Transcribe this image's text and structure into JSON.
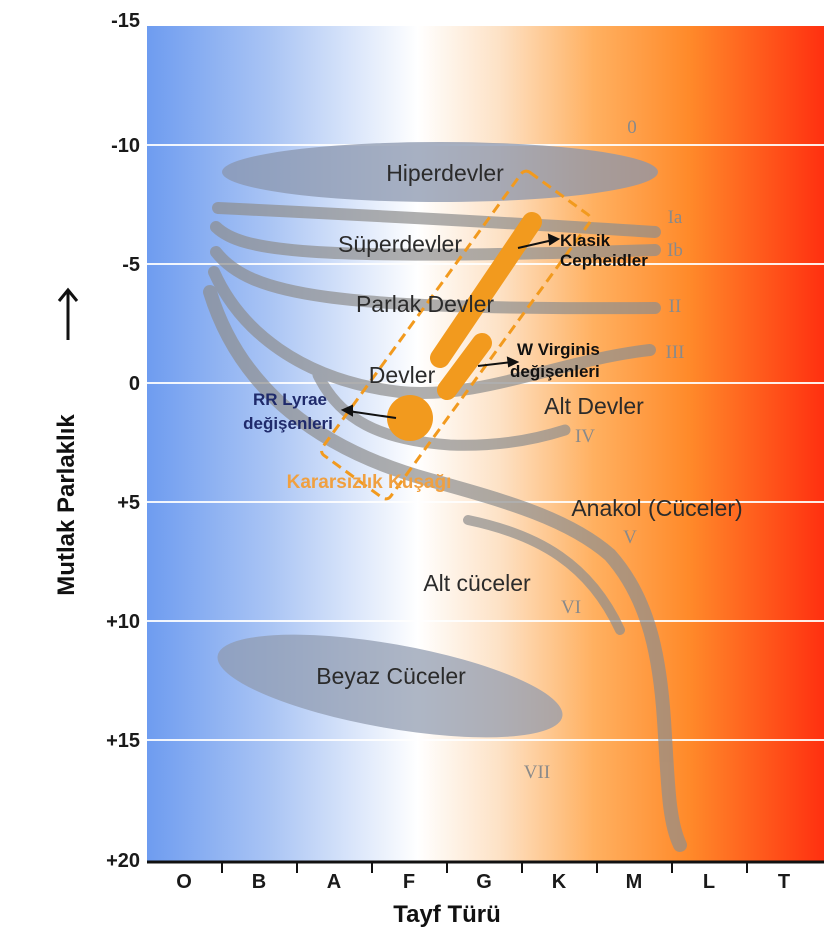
{
  "diagram": {
    "y_axis_title": "Mutlak Parlaklık",
    "x_axis_title": "Tayf Türü",
    "y_ticks": [
      "-15",
      "-10",
      "-5",
      "0",
      "+5",
      "+10",
      "+15",
      "+20"
    ],
    "x_ticks": [
      "O",
      "B",
      "A",
      "F",
      "G",
      "K",
      "M",
      "L",
      "T"
    ],
    "regions": {
      "hypergiants": "Hiperdevler",
      "supergiants": "Süperdevler",
      "bright_giants": "Parlak Devler",
      "giants": "Devler",
      "subgiants": "Alt Devler",
      "main_sequence": "Anakol (Cüceler)",
      "subdwarfs": "Alt cüceler",
      "white_dwarfs": "Beyaz Cüceler"
    },
    "luminosity_classes": [
      "0",
      "Ia",
      "Ib",
      "II",
      "III",
      "IV",
      "V",
      "VI",
      "VII"
    ],
    "variables": {
      "classical_cepheids_line1": "Klasik",
      "classical_cepheids_line2": "Cepheidler",
      "w_virginis_line1": "W Virginis",
      "w_virginis_line2": "değişenleri",
      "rr_lyrae_line1": "RR Lyrae",
      "rr_lyrae_line2": "değişenleri"
    },
    "instability_strip": "Kararsızlık Kuşağı",
    "colors": {
      "bg_blue": "#6e9cf0",
      "bg_white": "#ffffff",
      "bg_orange": "#ff9a30",
      "bg_red": "#ff3010",
      "branch_gray": "#8e8e8e",
      "instability_orange": "#f29a1e",
      "strip_label": "#f0a040"
    }
  }
}
